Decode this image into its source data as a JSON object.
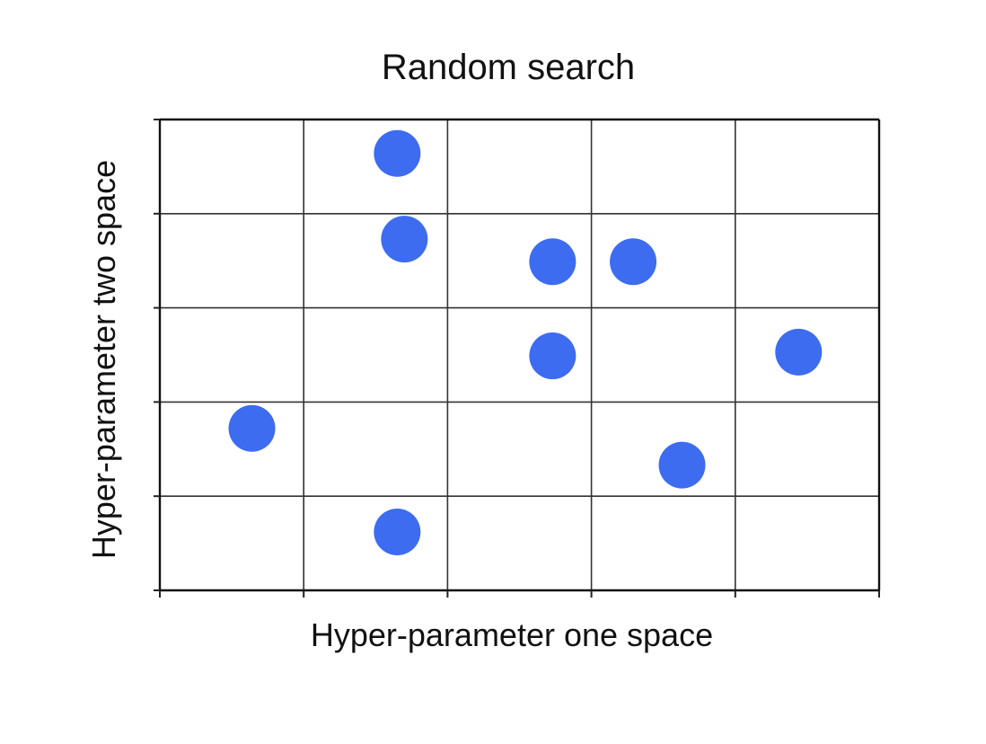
{
  "chart_data": {
    "type": "scatter",
    "title": "Random search",
    "xlabel": "Hyper-parameter one space",
    "ylabel": "Hyper-parameter two space",
    "xlim": [
      0,
      5
    ],
    "ylim": [
      0,
      5
    ],
    "grid": true,
    "x_tick_labels": [],
    "y_tick_labels": [],
    "marker_color": "#3d6cf0",
    "series": [
      {
        "points": [
          {
            "x": 1.65,
            "y": 4.64
          },
          {
            "x": 1.7,
            "y": 3.73
          },
          {
            "x": 2.73,
            "y": 3.49
          },
          {
            "x": 3.29,
            "y": 3.49
          },
          {
            "x": 2.73,
            "y": 2.49
          },
          {
            "x": 4.44,
            "y": 2.53
          },
          {
            "x": 0.64,
            "y": 1.72
          },
          {
            "x": 3.63,
            "y": 1.33
          },
          {
            "x": 1.65,
            "y": 0.62
          }
        ]
      }
    ]
  }
}
